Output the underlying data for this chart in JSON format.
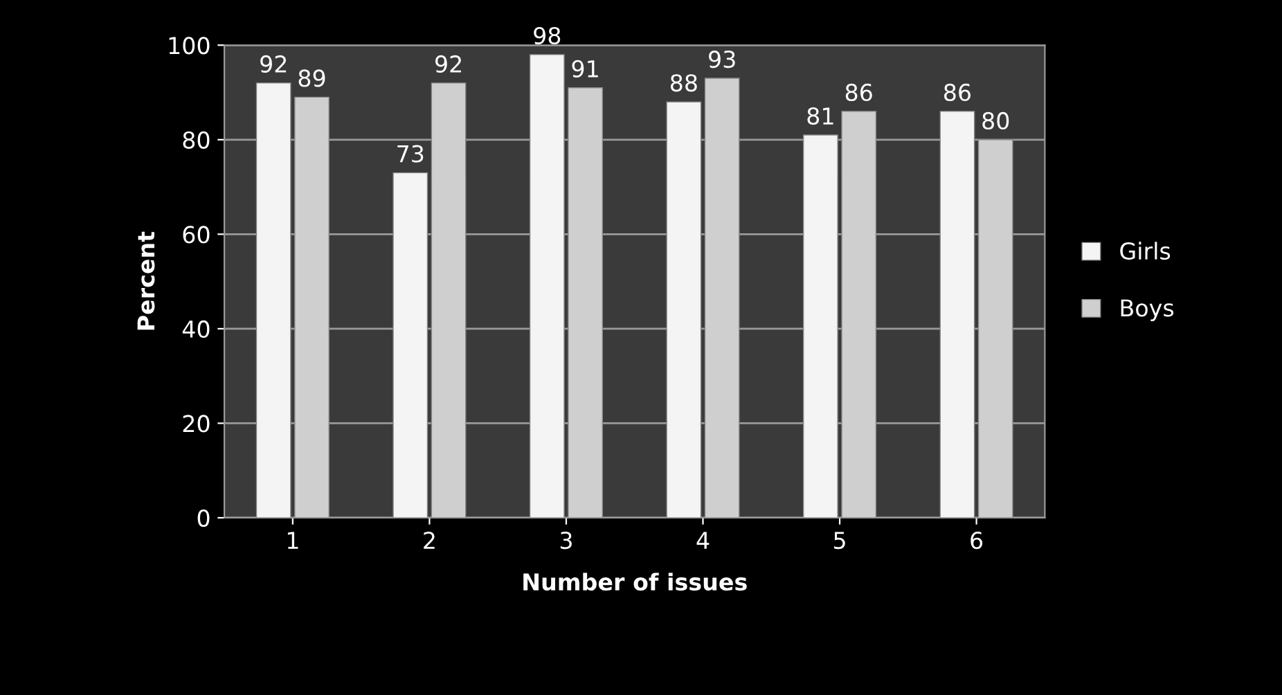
{
  "chart_data": {
    "type": "bar",
    "xlabel": "Number of issues",
    "ylabel": "Percent",
    "categories": [
      "1",
      "2",
      "3",
      "4",
      "5",
      "6"
    ],
    "series": [
      {
        "name": "Girls",
        "color": "#f4f4f4",
        "values": [
          92,
          73,
          98,
          88,
          81,
          86
        ]
      },
      {
        "name": "Boys",
        "color": "#cfcfcf",
        "values": [
          89,
          92,
          91,
          93,
          86,
          80
        ]
      }
    ],
    "ylim": [
      0,
      100
    ],
    "yticks": [
      0,
      20,
      40,
      60,
      80,
      100
    ],
    "grid": "y",
    "legend": "right",
    "data_labels": true
  }
}
